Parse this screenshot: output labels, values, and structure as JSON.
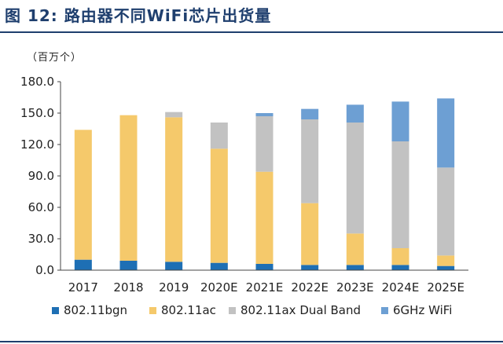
{
  "figure": {
    "title": "图 12:  路由器不同WiFi芯片出货量"
  },
  "chart_data": {
    "type": "bar",
    "stacked": true,
    "unit_label": "（百万个）",
    "categories": [
      "2017",
      "2018",
      "2019",
      "2020E",
      "2021E",
      "2022E",
      "2023E",
      "2024E",
      "2025E"
    ],
    "series": [
      {
        "name": "802.11bgn",
        "color": "#1e6fb4",
        "values": [
          10,
          9,
          8,
          7,
          6,
          5,
          5,
          5,
          4
        ]
      },
      {
        "name": "802.11ac",
        "color": "#f5c96b",
        "values": [
          124,
          139,
          138,
          109,
          88,
          59,
          30,
          16,
          10
        ]
      },
      {
        "name": "802.11ax Dual Band",
        "color": "#c2c2c2",
        "values": [
          0,
          0,
          5,
          25,
          53,
          80,
          106,
          102,
          84
        ]
      },
      {
        "name": "6GHz WiFi",
        "color": "#6d9fd3",
        "values": [
          0,
          0,
          0,
          0,
          3,
          10,
          17,
          38,
          66
        ]
      }
    ],
    "y_ticks": [
      "0.0",
      "30.0",
      "60.0",
      "90.0",
      "120.0",
      "150.0",
      "180.0"
    ],
    "ylim": [
      0,
      180
    ],
    "grid": false,
    "legend_position": "bottom"
  }
}
